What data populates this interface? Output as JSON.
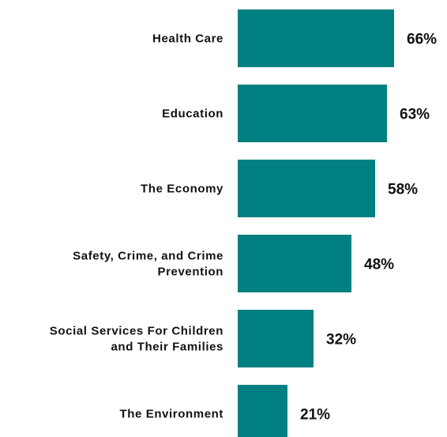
{
  "chart_data": {
    "type": "bar",
    "orientation": "horizontal",
    "title": "",
    "xlabel": "",
    "ylabel": "",
    "categories": [
      [
        "Health Care"
      ],
      [
        "Education"
      ],
      [
        "The Economy"
      ],
      [
        "Safety, Crime, and Crime",
        "Prevention"
      ],
      [
        "Social Services For Children",
        "and Their Families"
      ],
      [
        "The Environment"
      ]
    ],
    "values": [
      66,
      63,
      58,
      48,
      32,
      21
    ],
    "value_labels": [
      "66%",
      "63%",
      "58%",
      "48%",
      "32%",
      "21%"
    ],
    "xlim": [
      0,
      100
    ],
    "grid": false,
    "legend": "none",
    "bar_color": "#008080"
  }
}
